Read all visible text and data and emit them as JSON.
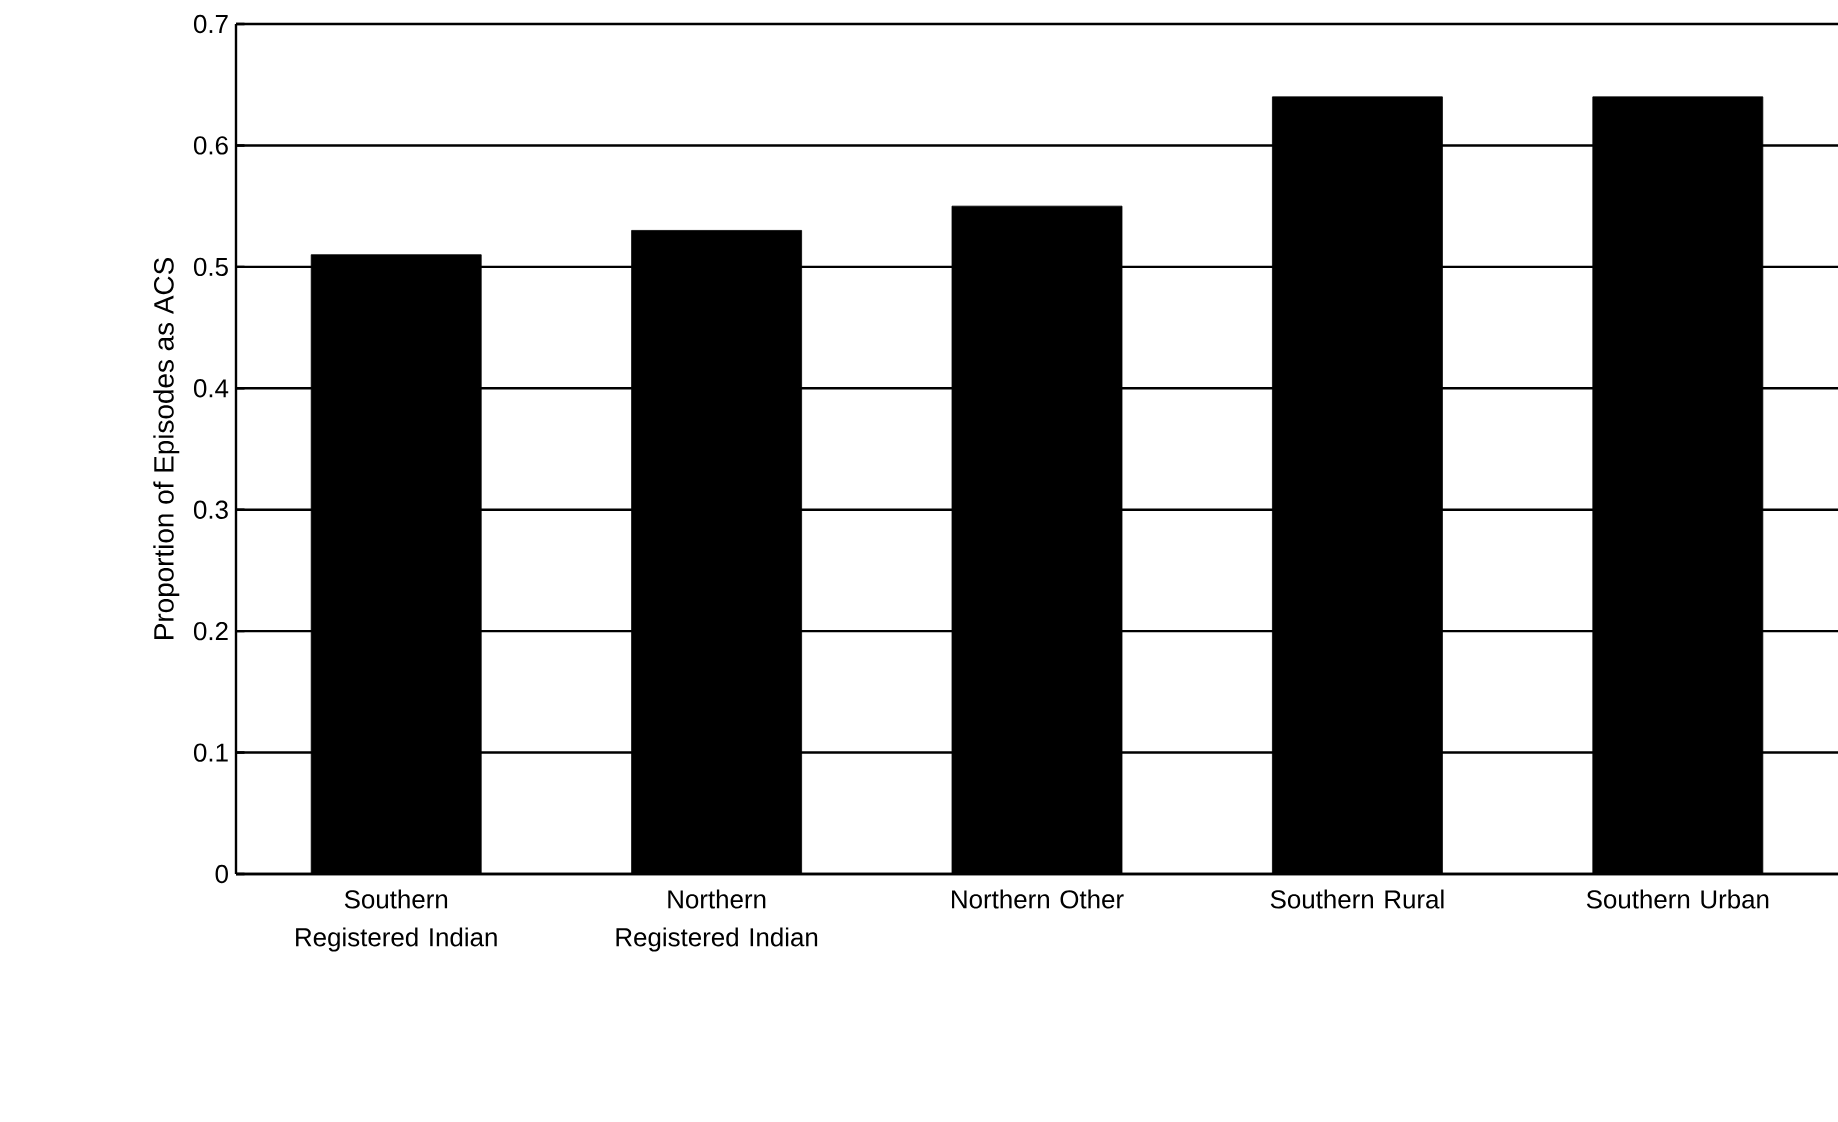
{
  "chart_data": {
    "type": "bar",
    "ylabel": "Proportion of Episodes as ACS",
    "categories": [
      "Southern Registered Indian",
      "Northern Registered Indian",
      "Northern Other",
      "Southern Rural",
      "Southern Urban"
    ],
    "values": [
      0.51,
      0.53,
      0.55,
      0.64,
      0.64
    ],
    "color": "#000000",
    "ylim": [
      0,
      0.7
    ],
    "yticks": [
      0,
      0.1,
      0.2,
      0.3,
      0.4,
      0.5,
      0.6,
      0.7
    ],
    "grid": "y"
  }
}
